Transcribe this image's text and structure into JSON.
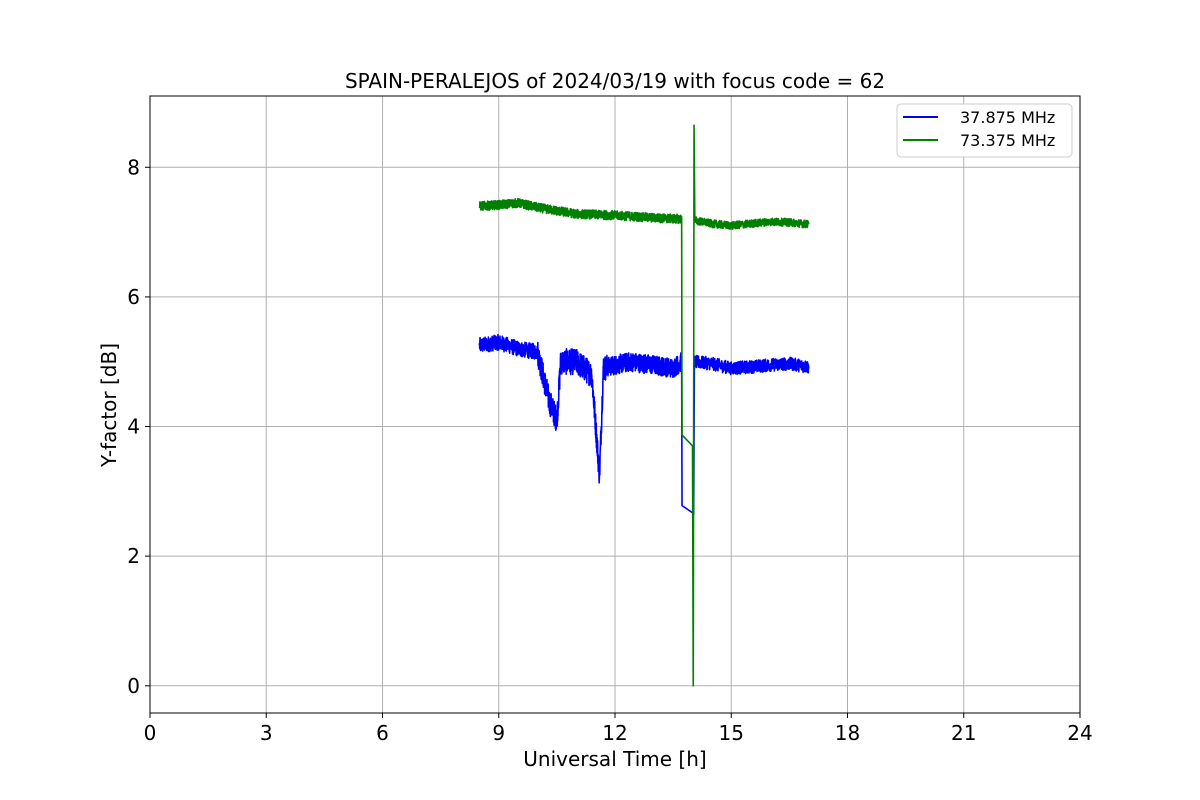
{
  "chart_data": {
    "type": "line",
    "title": "SPAIN-PERALEJOS of 2024/03/19 with focus code = 62",
    "xlabel": "Universal Time [h]",
    "ylabel": "Y-factor [dB]",
    "xlim": [
      0,
      24
    ],
    "ylim": [
      -0.42,
      9.1
    ],
    "xticks": [
      "0",
      "3",
      "6",
      "9",
      "12",
      "15",
      "18",
      "21",
      "24"
    ],
    "yticks": [
      "0",
      "2",
      "4",
      "6",
      "8"
    ],
    "grid": true,
    "legend_position": "top-right",
    "series": [
      {
        "name": "37.875 MHz",
        "color": "#0000ff",
        "points": [
          [
            8.5,
            5.25
          ],
          [
            9.0,
            5.3
          ],
          [
            9.5,
            5.2
          ],
          [
            10.0,
            5.15
          ],
          [
            10.3,
            4.4
          ],
          [
            10.5,
            4.1
          ],
          [
            10.6,
            5.0
          ],
          [
            11.0,
            5.0
          ],
          [
            11.4,
            4.8
          ],
          [
            11.6,
            3.25
          ],
          [
            11.7,
            4.9
          ],
          [
            12.0,
            4.95
          ],
          [
            12.4,
            5.0
          ],
          [
            13.0,
            4.95
          ],
          [
            13.5,
            4.9
          ],
          [
            13.72,
            5.0
          ],
          [
            13.73,
            2.78
          ],
          [
            14.0,
            2.67
          ],
          [
            14.03,
            2.65
          ],
          [
            14.05,
            5.0
          ],
          [
            14.5,
            4.97
          ],
          [
            15.0,
            4.9
          ],
          [
            15.5,
            4.92
          ],
          [
            16.0,
            4.95
          ],
          [
            16.5,
            4.97
          ],
          [
            17.0,
            4.92
          ]
        ],
        "noise": [
          [
            8.5,
            10.0,
            0.12
          ],
          [
            10.0,
            11.8,
            0.2
          ],
          [
            11.8,
            13.72,
            0.15
          ],
          [
            14.05,
            17.0,
            0.1
          ]
        ]
      },
      {
        "name": "73.375 MHz",
        "color": "#008000",
        "points": [
          [
            8.5,
            7.4
          ],
          [
            9.0,
            7.42
          ],
          [
            9.5,
            7.45
          ],
          [
            10.0,
            7.38
          ],
          [
            10.5,
            7.33
          ],
          [
            11.0,
            7.28
          ],
          [
            12.0,
            7.26
          ],
          [
            12.5,
            7.24
          ],
          [
            13.0,
            7.22
          ],
          [
            13.72,
            7.2
          ],
          [
            13.73,
            3.87
          ],
          [
            14.0,
            3.7
          ],
          [
            14.02,
            0.0
          ],
          [
            14.04,
            8.65
          ],
          [
            14.06,
            7.18
          ],
          [
            14.5,
            7.13
          ],
          [
            15.0,
            7.1
          ],
          [
            15.5,
            7.13
          ],
          [
            16.0,
            7.16
          ],
          [
            16.5,
            7.15
          ],
          [
            17.0,
            7.12
          ]
        ],
        "noise": [
          [
            8.5,
            13.72,
            0.07
          ],
          [
            14.06,
            17.0,
            0.06
          ]
        ]
      }
    ]
  }
}
